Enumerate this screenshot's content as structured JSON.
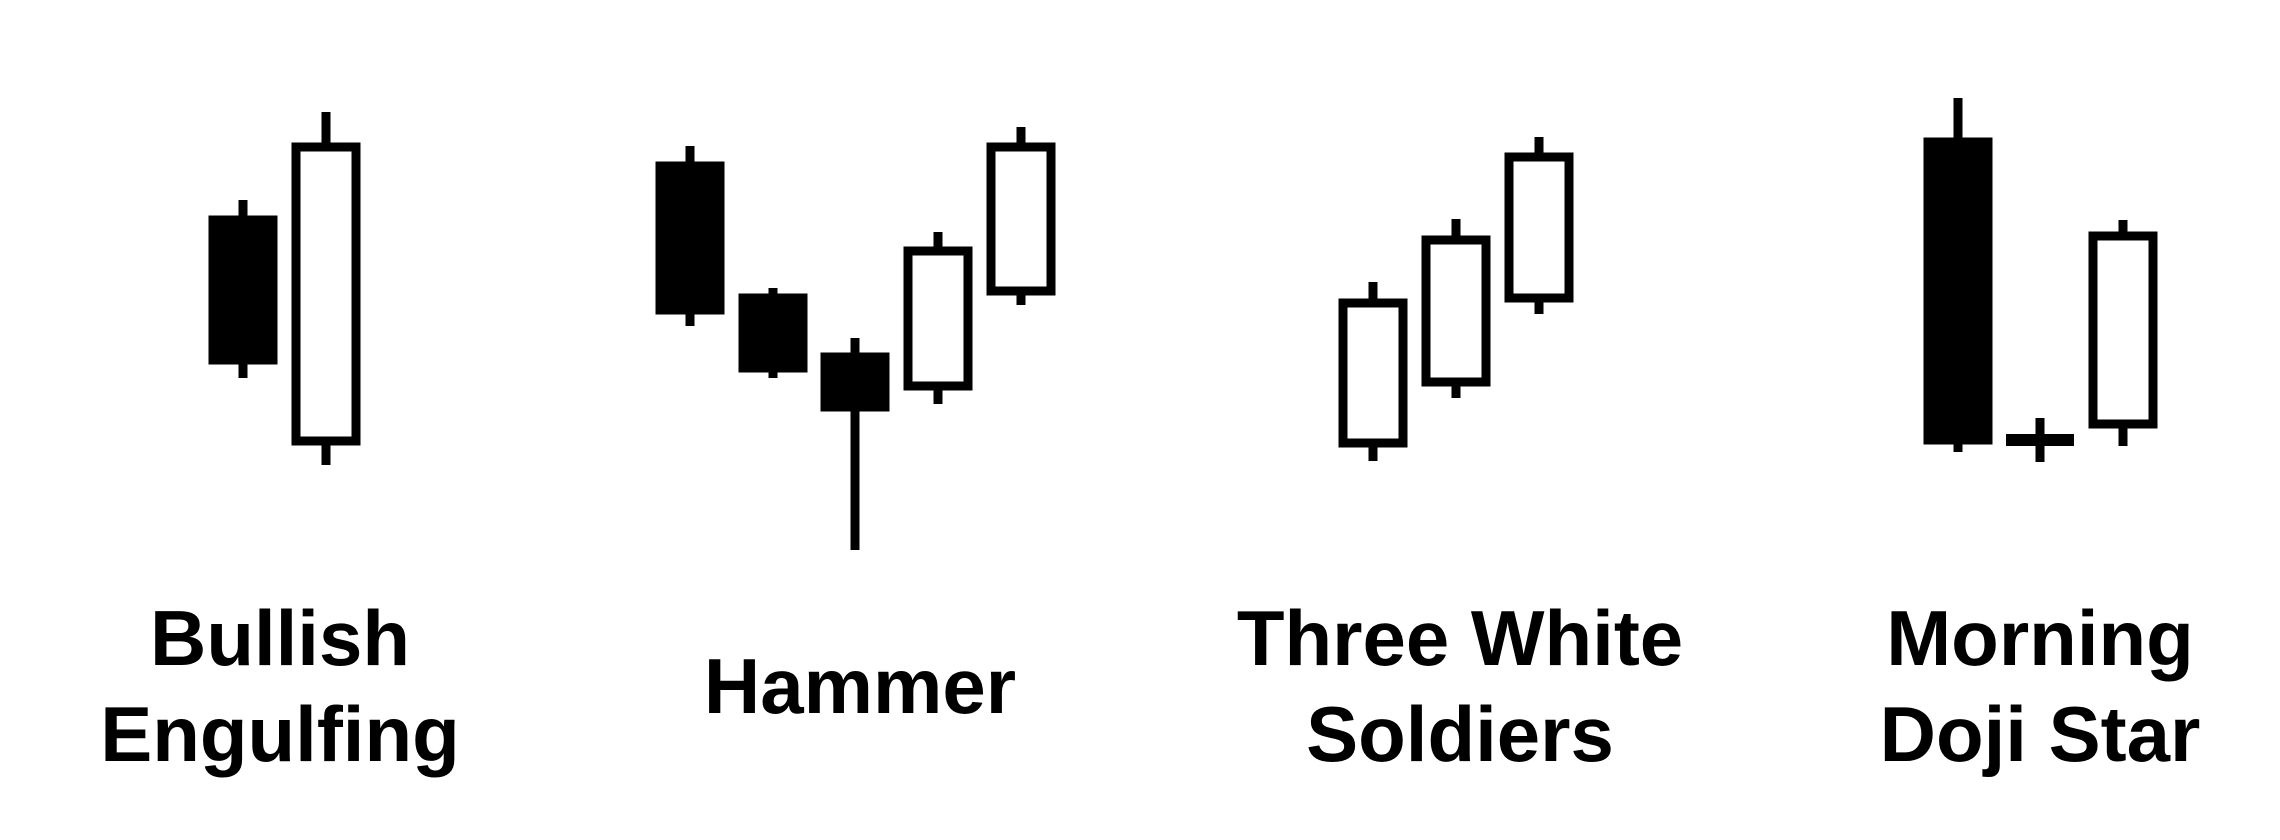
{
  "colors": {
    "ink": "#000000",
    "paper": "#ffffff"
  },
  "patterns": [
    {
      "name_lines": [
        "Bullish",
        "Engulfing"
      ],
      "candles": [
        {
          "kind": "bearish"
        },
        {
          "kind": "bullish"
        }
      ]
    },
    {
      "name_lines": [
        "Hammer"
      ],
      "candles": [
        {
          "kind": "bearish"
        },
        {
          "kind": "bearish"
        },
        {
          "kind": "bearish"
        },
        {
          "kind": "bullish"
        },
        {
          "kind": "bullish"
        }
      ]
    },
    {
      "name_lines": [
        "Three White",
        "Soldiers"
      ],
      "candles": [
        {
          "kind": "bullish"
        },
        {
          "kind": "bullish"
        },
        {
          "kind": "bullish"
        }
      ]
    },
    {
      "name_lines": [
        "Morning",
        "Doji Star"
      ],
      "candles": [
        {
          "kind": "bearish"
        },
        {
          "kind": "doji"
        },
        {
          "kind": "bullish"
        }
      ]
    }
  ]
}
